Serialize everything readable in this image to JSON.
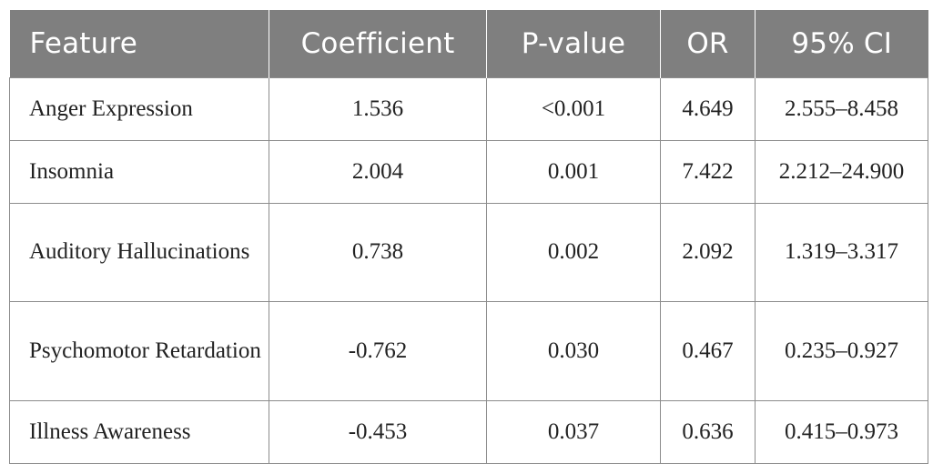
{
  "table": {
    "headers": [
      "Feature",
      "Coefficient",
      "P-value",
      "OR",
      "95% CI"
    ],
    "rows": [
      {
        "feature": "Anger Expression",
        "coefficient": "1.536",
        "p_value": "<0.001",
        "or": "4.649",
        "ci": "2.555–8.458"
      },
      {
        "feature": "Insomnia",
        "coefficient": "2.004",
        "p_value": "0.001",
        "or": "7.422",
        "ci": "2.212–24.900"
      },
      {
        "feature": "Auditory Hallucinations",
        "coefficient": "0.738",
        "p_value": "0.002",
        "or": "2.092",
        "ci": "1.319–3.317"
      },
      {
        "feature": "Psychomotor Retardation",
        "coefficient": "-0.762",
        "p_value": "0.030",
        "or": "0.467",
        "ci": "0.235–0.927"
      },
      {
        "feature": "Illness Awareness",
        "coefficient": "-0.453",
        "p_value": "0.037",
        "or": "0.636",
        "ci": "0.415–0.973"
      }
    ]
  },
  "colors": {
    "header_background": "#7f7f7f",
    "header_text": "#ffffff",
    "border": "#8c8c8c"
  }
}
